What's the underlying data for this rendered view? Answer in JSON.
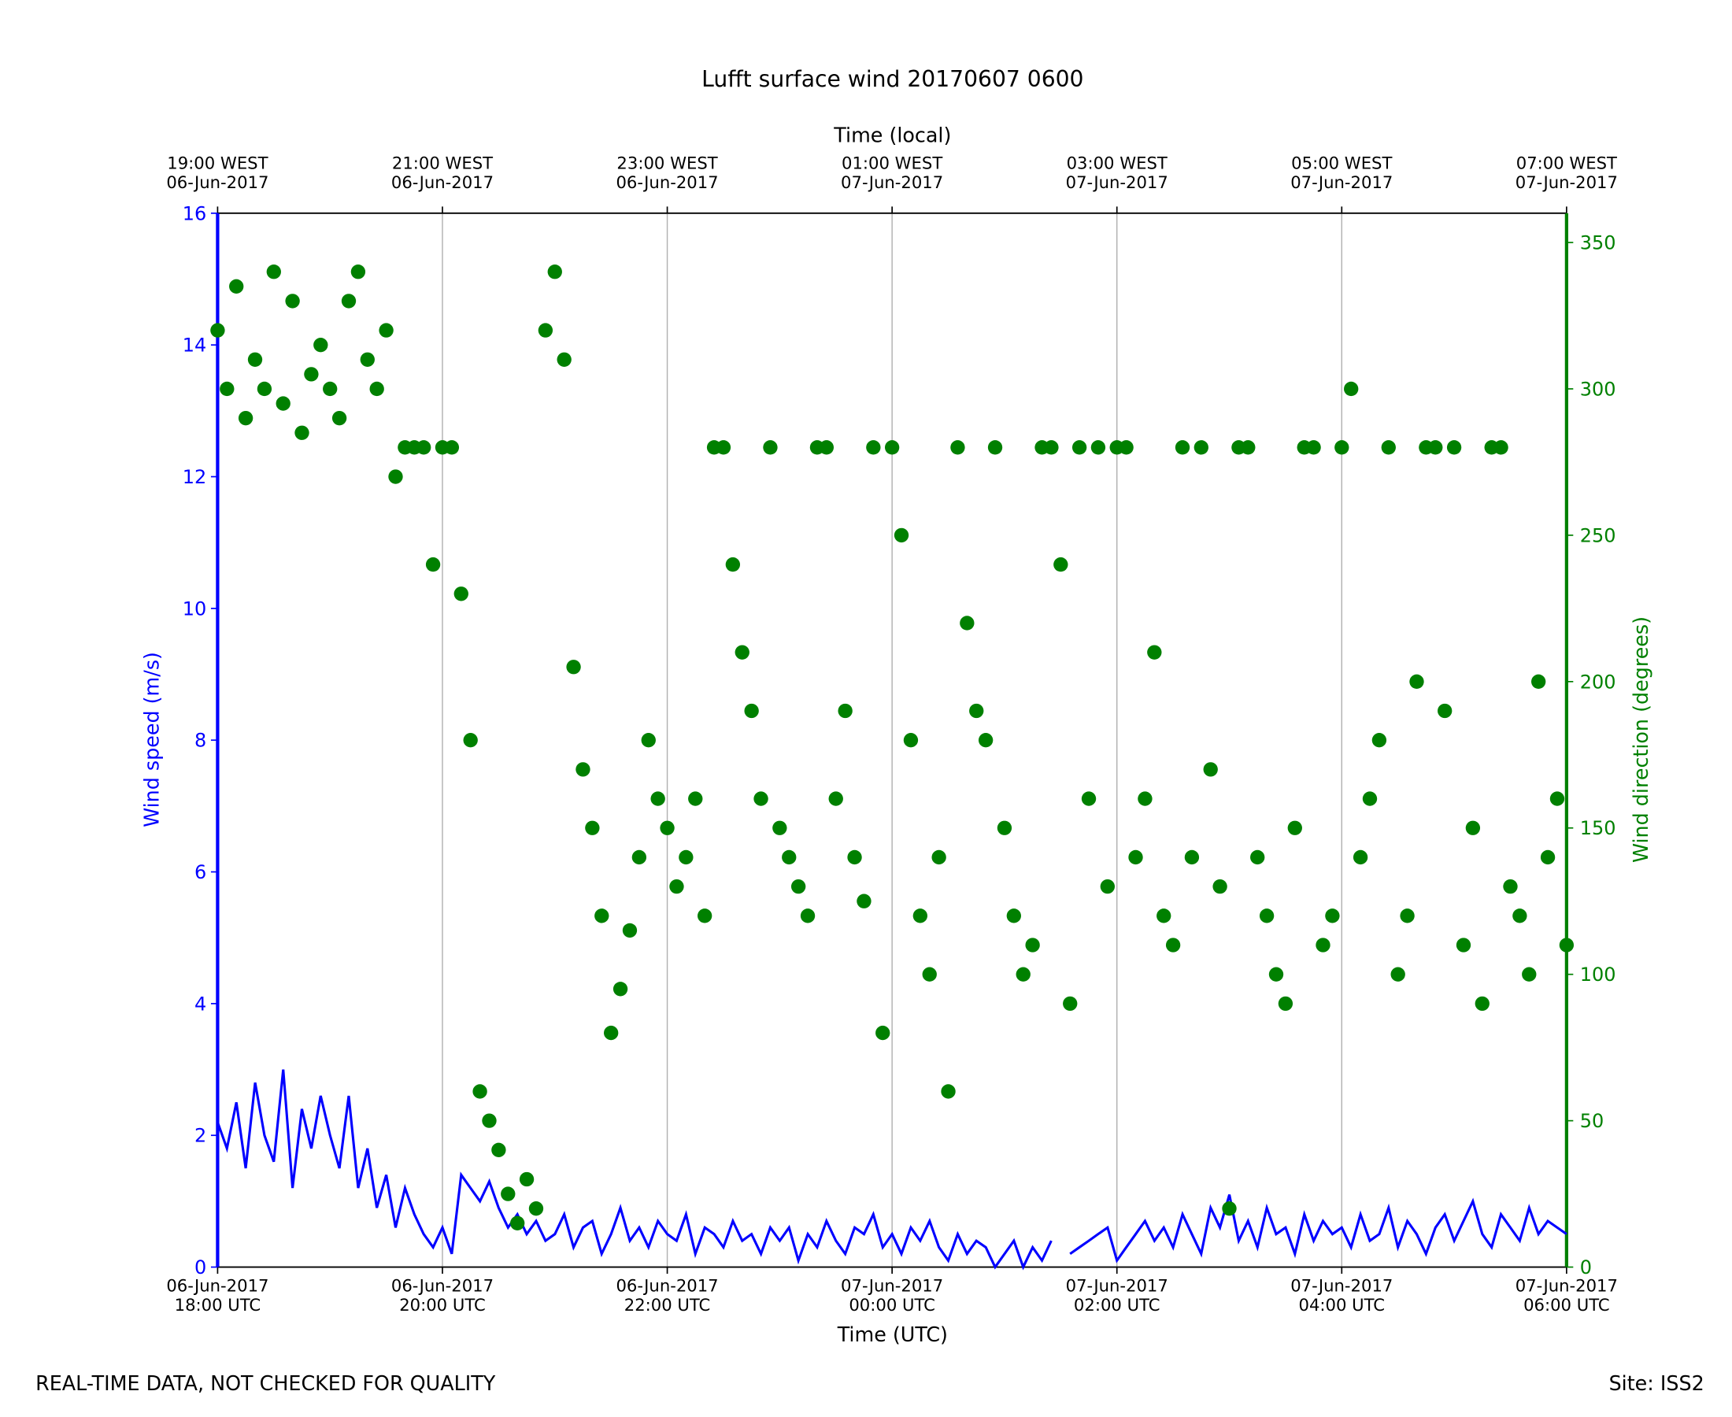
{
  "chart_data": {
    "type": "line-scatter",
    "title": "Lufft surface wind 20170607 0600",
    "xlabel": "Time (UTC)",
    "top_xlabel": "Time (local)",
    "ylabel": "Wind speed (m/s)",
    "y2label": "Wind direction (degrees)",
    "footer_left": "REAL-TIME DATA, NOT CHECKED FOR QUALITY",
    "footer_right": "Site: ISS2",
    "grid": true,
    "xlim": [
      "2017-06-06T18:00",
      "2017-06-07T06:00"
    ],
    "xticks": [
      {
        "value": "2017-06-06T18:00",
        "label": "06-Jun-2017\n18:00 UTC"
      },
      {
        "value": "2017-06-06T20:00",
        "label": "06-Jun-2017\n20:00 UTC"
      },
      {
        "value": "2017-06-06T22:00",
        "label": "06-Jun-2017\n22:00 UTC"
      },
      {
        "value": "2017-06-07T00:00",
        "label": "07-Jun-2017\n00:00 UTC"
      },
      {
        "value": "2017-06-07T02:00",
        "label": "07-Jun-2017\n02:00 UTC"
      },
      {
        "value": "2017-06-07T04:00",
        "label": "07-Jun-2017\n04:00 UTC"
      },
      {
        "value": "2017-06-07T06:00",
        "label": "07-Jun-2017\n06:00 UTC"
      }
    ],
    "top_xticks": [
      {
        "value": "2017-06-06T18:00",
        "label": "19:00 WEST\n06-Jun-2017"
      },
      {
        "value": "2017-06-06T20:00",
        "label": "21:00 WEST\n06-Jun-2017"
      },
      {
        "value": "2017-06-06T22:00",
        "label": "23:00 WEST\n06-Jun-2017"
      },
      {
        "value": "2017-06-07T00:00",
        "label": "01:00 WEST\n07-Jun-2017"
      },
      {
        "value": "2017-06-07T02:00",
        "label": "03:00 WEST\n07-Jun-2017"
      },
      {
        "value": "2017-06-07T04:00",
        "label": "05:00 WEST\n07-Jun-2017"
      },
      {
        "value": "2017-06-07T06:00",
        "label": "07:00 WEST\n07-Jun-2017"
      }
    ],
    "ylim": [
      0,
      16
    ],
    "yticks": [
      0,
      2,
      4,
      6,
      8,
      10,
      12,
      14,
      16
    ],
    "y2lim": [
      0,
      360
    ],
    "y2ticks": [
      0,
      50,
      100,
      150,
      200,
      250,
      300,
      350
    ],
    "x": [
      "2017-06-06T18:00",
      "2017-06-06T18:05",
      "2017-06-06T18:10",
      "2017-06-06T18:15",
      "2017-06-06T18:20",
      "2017-06-06T18:25",
      "2017-06-06T18:30",
      "2017-06-06T18:35",
      "2017-06-06T18:40",
      "2017-06-06T18:45",
      "2017-06-06T18:50",
      "2017-06-06T18:55",
      "2017-06-06T19:00",
      "2017-06-06T19:05",
      "2017-06-06T19:10",
      "2017-06-06T19:15",
      "2017-06-06T19:20",
      "2017-06-06T19:25",
      "2017-06-06T19:30",
      "2017-06-06T19:35",
      "2017-06-06T19:40",
      "2017-06-06T19:45",
      "2017-06-06T19:50",
      "2017-06-06T19:55",
      "2017-06-06T20:00",
      "2017-06-06T20:05",
      "2017-06-06T20:10",
      "2017-06-06T20:15",
      "2017-06-06T20:20",
      "2017-06-06T20:25",
      "2017-06-06T20:30",
      "2017-06-06T20:35",
      "2017-06-06T20:40",
      "2017-06-06T20:45",
      "2017-06-06T20:50",
      "2017-06-06T20:55",
      "2017-06-06T21:00",
      "2017-06-06T21:05",
      "2017-06-06T21:10",
      "2017-06-06T21:15",
      "2017-06-06T21:20",
      "2017-06-06T21:25",
      "2017-06-06T21:30",
      "2017-06-06T21:35",
      "2017-06-06T21:40",
      "2017-06-06T21:45",
      "2017-06-06T21:50",
      "2017-06-06T21:55",
      "2017-06-06T22:00",
      "2017-06-06T22:05",
      "2017-06-06T22:10",
      "2017-06-06T22:15",
      "2017-06-06T22:20",
      "2017-06-06T22:25",
      "2017-06-06T22:30",
      "2017-06-06T22:35",
      "2017-06-06T22:40",
      "2017-06-06T22:45",
      "2017-06-06T22:50",
      "2017-06-06T22:55",
      "2017-06-06T23:00",
      "2017-06-06T23:05",
      "2017-06-06T23:10",
      "2017-06-06T23:15",
      "2017-06-06T23:20",
      "2017-06-06T23:25",
      "2017-06-06T23:30",
      "2017-06-06T23:35",
      "2017-06-06T23:40",
      "2017-06-06T23:45",
      "2017-06-06T23:50",
      "2017-06-06T23:55",
      "2017-06-07T00:00",
      "2017-06-07T00:05",
      "2017-06-07T00:10",
      "2017-06-07T00:15",
      "2017-06-07T00:20",
      "2017-06-07T00:25",
      "2017-06-07T00:30",
      "2017-06-07T00:35",
      "2017-06-07T00:40",
      "2017-06-07T00:45",
      "2017-06-07T00:50",
      "2017-06-07T00:55",
      "2017-06-07T01:00",
      "2017-06-07T01:05",
      "2017-06-07T01:10",
      "2017-06-07T01:15",
      "2017-06-07T01:20",
      "2017-06-07T01:25",
      "2017-06-07T01:30",
      "2017-06-07T01:35",
      "2017-06-07T01:40",
      "2017-06-07T01:45",
      "2017-06-07T01:50",
      "2017-06-07T01:55",
      "2017-06-07T02:00",
      "2017-06-07T02:05",
      "2017-06-07T02:10",
      "2017-06-07T02:15",
      "2017-06-07T02:20",
      "2017-06-07T02:25",
      "2017-06-07T02:30",
      "2017-06-07T02:35",
      "2017-06-07T02:40",
      "2017-06-07T02:45",
      "2017-06-07T02:50",
      "2017-06-07T02:55",
      "2017-06-07T03:00",
      "2017-06-07T03:05",
      "2017-06-07T03:10",
      "2017-06-07T03:15",
      "2017-06-07T03:20",
      "2017-06-07T03:25",
      "2017-06-07T03:30",
      "2017-06-07T03:35",
      "2017-06-07T03:40",
      "2017-06-07T03:45",
      "2017-06-07T03:50",
      "2017-06-07T03:55",
      "2017-06-07T04:00",
      "2017-06-07T04:05",
      "2017-06-07T04:10",
      "2017-06-07T04:15",
      "2017-06-07T04:20",
      "2017-06-07T04:25",
      "2017-06-07T04:30",
      "2017-06-07T04:35",
      "2017-06-07T04:40",
      "2017-06-07T04:45",
      "2017-06-07T04:50",
      "2017-06-07T04:55",
      "2017-06-07T05:00",
      "2017-06-07T05:05",
      "2017-06-07T05:10",
      "2017-06-07T05:15",
      "2017-06-07T05:20",
      "2017-06-07T05:25",
      "2017-06-07T05:30",
      "2017-06-07T05:35",
      "2017-06-07T05:40",
      "2017-06-07T05:45",
      "2017-06-07T05:50",
      "2017-06-07T05:55",
      "2017-06-07T06:00"
    ],
    "series": [
      {
        "color": "#0000ff",
        "kind": "line",
        "axis": "y",
        "values": [
          2.2,
          1.8,
          2.5,
          1.5,
          2.8,
          2.0,
          1.6,
          3.0,
          1.2,
          2.4,
          1.8,
          2.6,
          2.0,
          1.5,
          2.6,
          1.2,
          1.8,
          0.9,
          1.4,
          0.6,
          1.2,
          0.8,
          0.5,
          0.3,
          0.6,
          0.2,
          1.4,
          1.2,
          1.0,
          1.3,
          0.9,
          0.6,
          0.8,
          0.5,
          0.7,
          0.4,
          0.5,
          0.8,
          0.3,
          0.6,
          0.7,
          0.2,
          0.5,
          0.9,
          0.4,
          0.6,
          0.3,
          0.7,
          0.5,
          0.4,
          0.8,
          0.2,
          0.6,
          0.5,
          0.3,
          0.7,
          0.4,
          0.5,
          0.2,
          0.6,
          0.4,
          0.6,
          0.1,
          0.5,
          0.3,
          0.7,
          0.4,
          0.2,
          0.6,
          0.5,
          0.8,
          0.3,
          0.5,
          0.2,
          0.6,
          0.4,
          0.7,
          0.3,
          0.1,
          0.5,
          0.2,
          0.4,
          0.3,
          0.0,
          0.2,
          0.4,
          0.0,
          0.3,
          0.1,
          0.4,
          null,
          0.2,
          0.3,
          0.4,
          0.5,
          0.6,
          0.1,
          0.3,
          0.5,
          0.7,
          0.4,
          0.6,
          0.3,
          0.8,
          0.5,
          0.2,
          0.9,
          0.6,
          1.1,
          0.4,
          0.7,
          0.3,
          0.9,
          0.5,
          0.6,
          0.2,
          0.8,
          0.4,
          0.7,
          0.5,
          0.6,
          0.3,
          0.8,
          0.4,
          0.5,
          0.9,
          0.3,
          0.7,
          0.5,
          0.2,
          0.6,
          0.8,
          0.4,
          0.7,
          1.0,
          0.5,
          0.3,
          0.8,
          0.6,
          0.4,
          0.9,
          0.5,
          0.7,
          0.6,
          0.5
        ]
      },
      {
        "color": "#008000",
        "kind": "scatter",
        "axis": "y2",
        "values": [
          320,
          300,
          335,
          290,
          310,
          300,
          340,
          295,
          330,
          285,
          305,
          315,
          300,
          290,
          330,
          340,
          310,
          300,
          320,
          270,
          280,
          280,
          280,
          240,
          280,
          280,
          230,
          180,
          60,
          50,
          40,
          25,
          15,
          30,
          20,
          320,
          340,
          310,
          205,
          170,
          150,
          120,
          80,
          95,
          115,
          140,
          180,
          160,
          150,
          130,
          140,
          160,
          120,
          280,
          280,
          240,
          210,
          190,
          160,
          280,
          150,
          140,
          130,
          120,
          280,
          280,
          160,
          190,
          140,
          125,
          280,
          80,
          280,
          250,
          180,
          120,
          100,
          140,
          60,
          280,
          220,
          190,
          180,
          280,
          150,
          120,
          100,
          110,
          280,
          280,
          240,
          90,
          280,
          160,
          280,
          130,
          280,
          280,
          140,
          160,
          210,
          120,
          110,
          280,
          140,
          280,
          170,
          130,
          20,
          280,
          280,
          140,
          120,
          100,
          90,
          150,
          280,
          280,
          110,
          120,
          280,
          300,
          140,
          160,
          180,
          280,
          100,
          120,
          200,
          280,
          280,
          190,
          280,
          110,
          150,
          90,
          280,
          280,
          130,
          120,
          100,
          200,
          140,
          160,
          110
        ]
      }
    ]
  }
}
